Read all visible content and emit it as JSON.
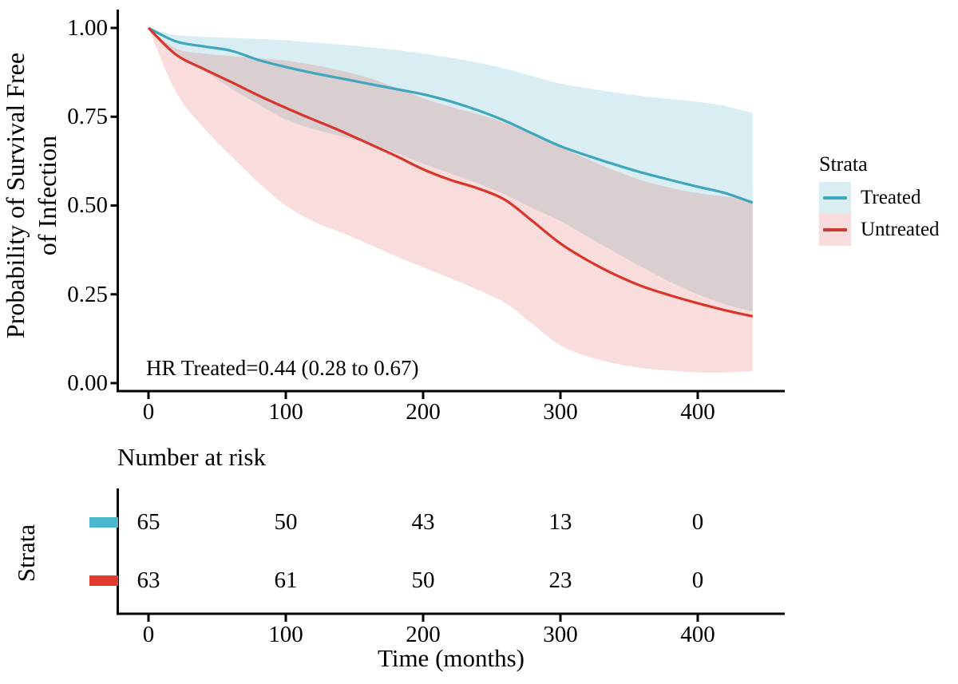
{
  "chart_data": {
    "type": "line",
    "subtype": "kaplan-meier-survival-with-ci-bands",
    "title": "",
    "xlabel": "Time (months)",
    "ylabel_lines": [
      "Probability of Survival Free",
      "of Infection"
    ],
    "xlim": [
      0,
      455
    ],
    "ylim": [
      0,
      1
    ],
    "grid": false,
    "x_ticks": [
      0,
      100,
      200,
      300,
      400
    ],
    "x_tick_labels": [
      "0",
      "100",
      "200",
      "300",
      "400"
    ],
    "y_ticks": [
      1,
      0.75,
      0.5,
      0.25,
      0
    ],
    "y_tick_labels": [
      "1.00",
      "0.75",
      "0.50",
      "0.25",
      "0.00"
    ],
    "annotation": {
      "text": "HR Treated=0.44 (0.28 to 0.67)"
    },
    "legend": {
      "title": "Strata",
      "position": "right",
      "entries": [
        {
          "label": "Treated",
          "color": "#3FA6BD",
          "fill": "rgba(65,169,192,0.20)"
        },
        {
          "label": "Untreated",
          "color": "#CB3A31",
          "fill": "rgba(218,53,45,0.17)"
        }
      ]
    },
    "series": [
      {
        "name": "Treated",
        "color": "#3FA6BD",
        "fill": "rgba(65,169,192,0.20)",
        "x": [
          0,
          20,
          40,
          60,
          80,
          100,
          120,
          140,
          160,
          180,
          200,
          220,
          240,
          260,
          280,
          300,
          320,
          340,
          360,
          380,
          400,
          420,
          440
        ],
        "y": [
          1.0,
          0.962,
          0.948,
          0.936,
          0.91,
          0.89,
          0.873,
          0.858,
          0.843,
          0.828,
          0.813,
          0.793,
          0.768,
          0.738,
          0.702,
          0.667,
          0.64,
          0.615,
          0.592,
          0.572,
          0.553,
          0.535,
          0.508
        ],
        "upper": [
          1.0,
          0.98,
          0.975,
          0.972,
          0.969,
          0.965,
          0.959,
          0.953,
          0.946,
          0.938,
          0.928,
          0.916,
          0.902,
          0.885,
          0.864,
          0.843,
          0.83,
          0.818,
          0.808,
          0.8,
          0.792,
          0.78,
          0.76
        ],
        "lower": [
          1.0,
          0.93,
          0.882,
          0.83,
          0.785,
          0.742,
          0.715,
          0.695,
          0.675,
          0.648,
          0.618,
          0.59,
          0.562,
          0.53,
          0.492,
          0.456,
          0.412,
          0.368,
          0.325,
          0.285,
          0.25,
          0.222,
          0.202
        ]
      },
      {
        "name": "Untreated",
        "color": "#DA352D",
        "fill": "rgba(218,53,45,0.17)",
        "x": [
          0,
          20,
          40,
          60,
          80,
          100,
          120,
          140,
          160,
          180,
          200,
          220,
          240,
          260,
          280,
          300,
          320,
          340,
          360,
          380,
          400,
          420,
          440
        ],
        "y": [
          1.0,
          0.925,
          0.885,
          0.848,
          0.81,
          0.775,
          0.742,
          0.71,
          0.675,
          0.64,
          0.602,
          0.572,
          0.548,
          0.515,
          0.455,
          0.393,
          0.345,
          0.305,
          0.272,
          0.247,
          0.225,
          0.205,
          0.188
        ],
        "upper": [
          1.0,
          0.942,
          0.928,
          0.921,
          0.915,
          0.908,
          0.896,
          0.88,
          0.86,
          0.832,
          0.802,
          0.778,
          0.757,
          0.732,
          0.7,
          0.665,
          0.63,
          0.598,
          0.57,
          0.55,
          0.535,
          0.525,
          0.515
        ],
        "lower": [
          1.0,
          0.82,
          0.72,
          0.64,
          0.565,
          0.5,
          0.455,
          0.425,
          0.392,
          0.358,
          0.326,
          0.295,
          0.262,
          0.225,
          0.165,
          0.106,
          0.075,
          0.055,
          0.042,
          0.035,
          0.03,
          0.03,
          0.034
        ]
      }
    ],
    "risk_table": {
      "title": "Number at risk",
      "ylabel": "Strata",
      "xlabel": "Time (months)",
      "x_ticks": [
        0,
        100,
        200,
        300,
        400
      ],
      "x_tick_labels": [
        "0",
        "100",
        "200",
        "300",
        "400"
      ],
      "rows": [
        {
          "name": "Treated",
          "color": "#4CB6CE",
          "values": [
            "65",
            "50",
            "43",
            "13",
            "0"
          ]
        },
        {
          "name": "Untreated",
          "color": "#E13B2F",
          "values": [
            "63",
            "61",
            "50",
            "23",
            "0"
          ]
        }
      ]
    }
  }
}
